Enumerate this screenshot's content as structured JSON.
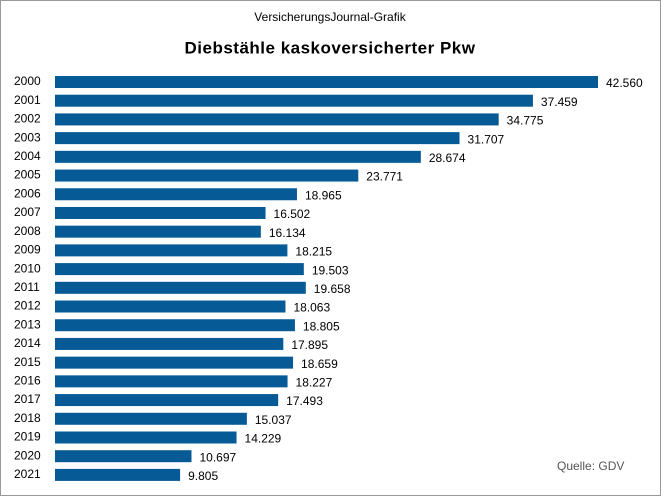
{
  "header": "VersicherungsJournal-Grafik",
  "source": "Quelle:  GDV",
  "chart_data": {
    "type": "bar",
    "orientation": "horizontal",
    "title": "Diebstähle  kaskoversicherter  Pkw",
    "color": "#065a96",
    "categories": [
      "2000",
      "2001",
      "2002",
      "2003",
      "2004",
      "2005",
      "2006",
      "2007",
      "2008",
      "2009",
      "2010",
      "2011",
      "2012",
      "2013",
      "2014",
      "2015",
      "2016",
      "2017",
      "2018",
      "2019",
      "2020",
      "2021"
    ],
    "values": [
      42560,
      37459,
      34775,
      31707,
      28674,
      23771,
      18965,
      16502,
      16134,
      18215,
      19503,
      19658,
      18063,
      18805,
      17895,
      18659,
      18227,
      17493,
      15037,
      14229,
      10697,
      9805
    ],
    "value_labels": [
      "42.560",
      "37.459",
      "34.775",
      "31.707",
      "28.674",
      "23.771",
      "18.965",
      "16.502",
      "16.134",
      "18.215",
      "19.503",
      "19.658",
      "18.063",
      "18.805",
      "17.895",
      "18.659",
      "18.227",
      "17.493",
      "15.037",
      "14.229",
      "10.697",
      "9.805"
    ]
  }
}
